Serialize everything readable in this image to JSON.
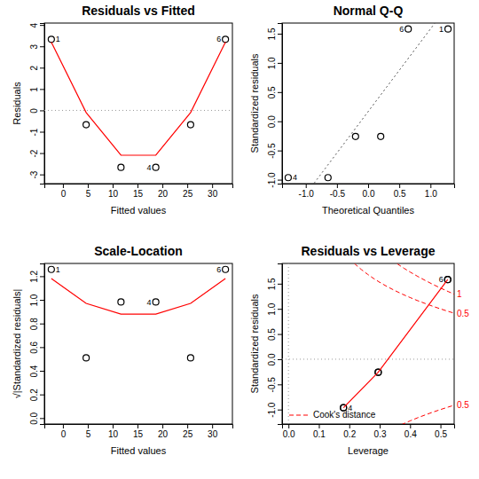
{
  "chart_data": [
    {
      "type": "scatter",
      "title": "Residuals vs Fitted",
      "x_label": "Fitted values",
      "y_label": "Residuals",
      "xlim": [
        -3.73,
        34.07
      ],
      "xticks": [
        0,
        5,
        10,
        15,
        20,
        25,
        30
      ],
      "ylim": [
        -3.43,
        4.09
      ],
      "yticks": [
        -3,
        -2,
        -1,
        0,
        1,
        2,
        3,
        4
      ],
      "hlines": [
        0
      ],
      "series": [
        {
          "type": "scatter",
          "marker": "circle",
          "color": "black",
          "x": [
            -2.33,
            4.67,
            11.67,
            18.67,
            25.67,
            32.67
          ],
          "values": [
            3.33,
            -0.67,
            -2.67,
            -2.67,
            -0.67,
            3.33
          ],
          "point_labels": [
            "1",
            null,
            null,
            "4",
            null,
            "6"
          ]
        },
        {
          "type": "line",
          "line_style": "solid",
          "color": "red",
          "x": [
            -2.33,
            4.67,
            11.67,
            18.67,
            25.67,
            32.67
          ],
          "values": [
            3.2,
            -0.1,
            -2.1,
            -2.1,
            -0.1,
            3.2
          ]
        }
      ]
    },
    {
      "type": "scatter",
      "title": "Normal Q-Q",
      "x_label": "Theoretical Quantiles",
      "y_label": "Standardized residuals",
      "xlim": [
        -1.38,
        1.38
      ],
      "xticks": [
        {
          "value": -1,
          "label": "-1.0"
        },
        -0.5,
        {
          "value": 0,
          "label": "0.0"
        },
        0.5,
        {
          "value": 1,
          "label": "1.0"
        }
      ],
      "ylim": [
        -1.067,
        1.682
      ],
      "yticks": [
        {
          "value": -1,
          "label": "-1.0"
        },
        -0.5,
        {
          "value": 0,
          "label": "0.0"
        },
        0.5,
        {
          "value": 1,
          "label": "1.0"
        },
        1.5
      ],
      "qq_line": {
        "intercept": 0.166,
        "slope": 1.415
      },
      "series": [
        {
          "type": "scatter",
          "marker": "circle",
          "color": "black",
          "x": [
            -1.2816,
            -0.6433,
            -0.2019,
            0.2019,
            0.6433,
            1.2816
          ],
          "values": [
            -0.9645,
            -0.9645,
            -0.2599,
            -0.2599,
            1.5811,
            1.5811
          ],
          "point_labels": [
            "4",
            null,
            null,
            null,
            "6",
            "1"
          ]
        }
      ]
    },
    {
      "type": "scatter",
      "title": "Scale-Location",
      "x_label": "Fitted values",
      "y_label": "√|Standardized residuals|",
      "xlim": [
        -3.73,
        34.07
      ],
      "xticks": [
        0,
        5,
        10,
        15,
        20,
        25,
        30
      ],
      "ylim": [
        -0.05,
        1.308
      ],
      "yticks": [
        {
          "value": 0,
          "label": "0.0"
        },
        0.2,
        0.4,
        0.6,
        0.8,
        {
          "value": 1,
          "label": "1.0"
        },
        1.2
      ],
      "series": [
        {
          "type": "scatter",
          "marker": "circle",
          "color": "black",
          "x": [
            -2.33,
            4.67,
            11.67,
            18.67,
            25.67,
            32.67
          ],
          "values": [
            1.2574,
            0.5098,
            0.9821,
            0.9821,
            0.5098,
            1.2574
          ],
          "point_labels": [
            "1",
            null,
            null,
            "4",
            null,
            "6"
          ]
        },
        {
          "type": "line",
          "line_style": "solid",
          "color": "red",
          "x": [
            -2.33,
            4.67,
            11.67,
            18.67,
            25.67,
            32.67
          ],
          "values": [
            1.18,
            0.97,
            0.88,
            0.88,
            0.97,
            1.18
          ]
        }
      ]
    },
    {
      "type": "scatter",
      "title": "Residuals vs Leverage",
      "x_label": "Leverage",
      "y_label": "Standardized residuals",
      "xlim": [
        -0.021,
        0.545
      ],
      "xticks": [
        {
          "value": 0,
          "label": "0.0"
        },
        0.1,
        0.2,
        0.3,
        0.4,
        0.5
      ],
      "ylim": [
        -1.287,
        1.902
      ],
      "yticks": [
        {
          "value": -1,
          "label": "-1.0"
        },
        -0.5,
        {
          "value": 0,
          "label": "0.0"
        },
        0.5,
        {
          "value": 1,
          "label": "1.0"
        },
        1.5
      ],
      "hlines": [
        0
      ],
      "vlines": [
        0
      ],
      "legend": "bottomleft",
      "cook_distance": {
        "name": "Cook's distance",
        "color": "red",
        "line_style": "dashed",
        "curves": [
          {
            "label": "0.5",
            "x": [
              0.2,
              0.22,
              0.24,
              0.26,
              0.28,
              0.3,
              0.325,
              0.35,
              0.375,
              0.4,
              0.425,
              0.45,
              0.475,
              0.5,
              0.525,
              0.545
            ],
            "y": [
              2.0,
              1.883,
              1.78,
              1.687,
              1.604,
              1.528,
              1.441,
              1.363,
              1.291,
              1.225,
              1.163,
              1.106,
              1.051,
              1.0,
              0.951,
              0.914
            ]
          },
          {
            "label": "1",
            "x": [
              0.32,
              0.34,
              0.36,
              0.38,
              0.4,
              0.425,
              0.45,
              0.475,
              0.5,
              0.525,
              0.545
            ],
            "y": [
              2.062,
              1.97,
              1.886,
              1.806,
              1.732,
              1.645,
              1.564,
              1.486,
              1.414,
              1.345,
              1.292
            ]
          },
          {
            "label": "0.5",
            "x": [
              0.35,
              0.375,
              0.4,
              0.425,
              0.45,
              0.475,
              0.5,
              0.525,
              0.545
            ],
            "y": [
              -1.363,
              -1.291,
              -1.225,
              -1.163,
              -1.106,
              -1.051,
              -1.0,
              -0.951,
              -0.914
            ]
          }
        ]
      },
      "series": [
        {
          "type": "scatter",
          "marker": "circle",
          "color": "black",
          "x": [
            0.5238,
            0.2952,
            0.181,
            0.181,
            0.2952,
            0.5238
          ],
          "values": [
            1.5811,
            -0.2599,
            -0.9645,
            -0.9645,
            -0.2599,
            1.5811
          ],
          "point_labels": [
            null,
            null,
            null,
            "4",
            null,
            "6"
          ]
        },
        {
          "type": "line",
          "line_style": "solid",
          "color": "red",
          "x": [
            0.181,
            0.2952,
            0.5238
          ],
          "values": [
            -0.9645,
            -0.2599,
            1.5811
          ]
        }
      ]
    }
  ]
}
